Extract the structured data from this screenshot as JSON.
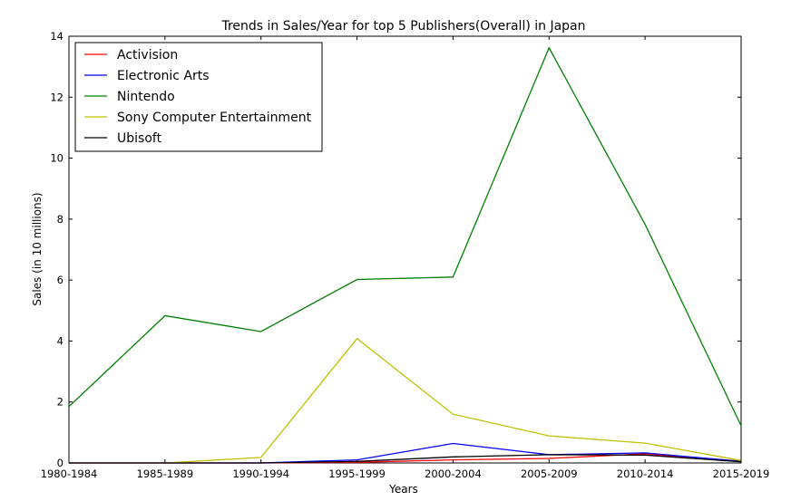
{
  "chart_data": {
    "type": "line",
    "title": "Trends in Sales/Year for top 5 Publishers(Overall) in Japan",
    "xlabel": "Years",
    "ylabel": "Sales (in 10 millions)",
    "categories": [
      "1980-1984",
      "1985-1989",
      "1990-1994",
      "1995-1999",
      "2000-2004",
      "2005-2009",
      "2010-2014",
      "2015-2019"
    ],
    "ylim": [
      0,
      14
    ],
    "yticks": [
      "0",
      "2",
      "4",
      "6",
      "8",
      "10",
      "12",
      "14"
    ],
    "grid": false,
    "legend_position": "top-left",
    "series": [
      {
        "name": "Activision",
        "color": "#ff0000",
        "values": [
          0,
          0,
          0,
          0.02,
          0.1,
          0.15,
          0.3,
          0.06
        ]
      },
      {
        "name": "Electronic Arts",
        "color": "#0000ff",
        "values": [
          0,
          0,
          0,
          0.1,
          0.64,
          0.27,
          0.33,
          0.05
        ]
      },
      {
        "name": "Nintendo",
        "color": "#008000",
        "values": [
          1.85,
          4.83,
          4.31,
          6.02,
          6.1,
          13.62,
          7.83,
          1.22
        ]
      },
      {
        "name": "Sony Computer Entertainment",
        "color": "#bfbf00",
        "values": [
          0,
          0,
          0.18,
          4.08,
          1.6,
          0.89,
          0.65,
          0.08
        ]
      },
      {
        "name": "Ubisoft",
        "color": "#000000",
        "values": [
          0,
          0,
          0,
          0.05,
          0.2,
          0.27,
          0.26,
          0.04
        ]
      }
    ]
  }
}
